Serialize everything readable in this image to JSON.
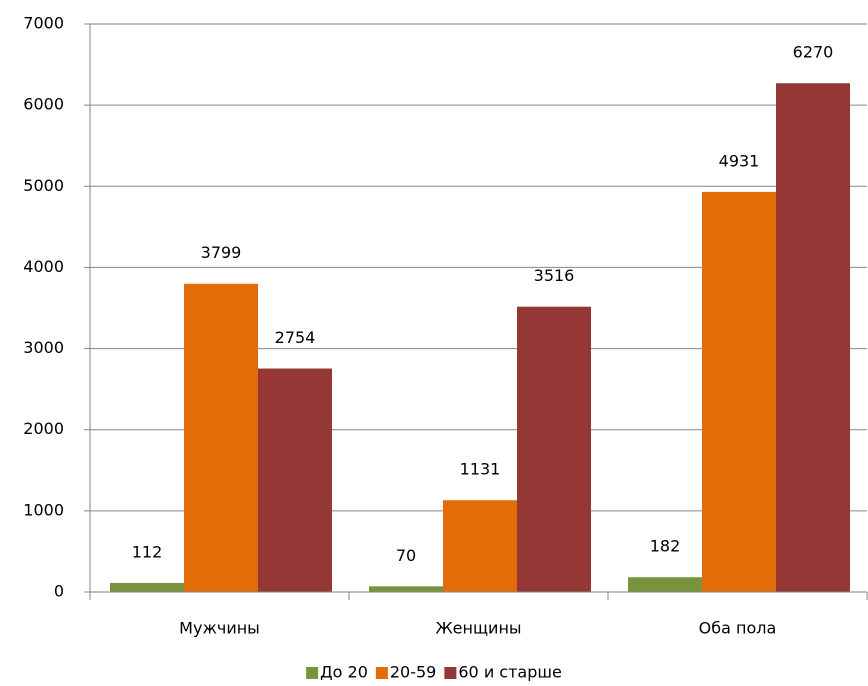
{
  "chart_data": {
    "type": "bar",
    "categories": [
      "Мужчины",
      "Женщины",
      "Оба пола"
    ],
    "series": [
      {
        "name": "До 20",
        "color": "#77933c",
        "values": [
          112,
          70,
          182
        ]
      },
      {
        "name": "20-59",
        "color": "#e36c09",
        "values": [
          3799,
          1131,
          4931
        ]
      },
      {
        "name": "60 и старше",
        "color": "#953735",
        "values": [
          2754,
          3516,
          6270
        ]
      }
    ],
    "ylim": [
      0,
      7000
    ],
    "yticks": [
      0,
      1000,
      2000,
      3000,
      4000,
      5000,
      6000,
      7000
    ],
    "grid": true,
    "legend": "bottom"
  }
}
